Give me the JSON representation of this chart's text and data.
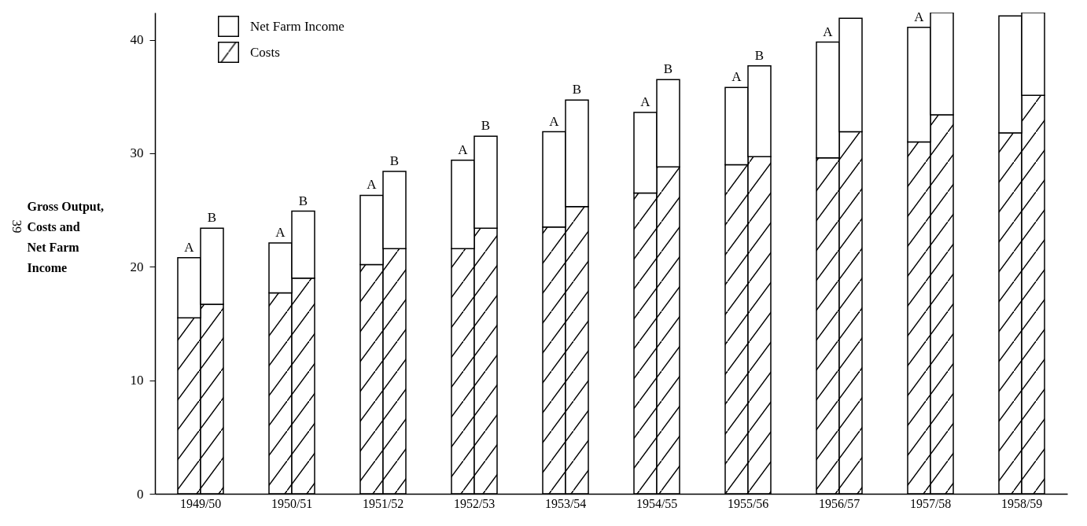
{
  "chart_data": {
    "type": "bar",
    "stacked": true,
    "ylabel": "Gross Output, Costs and Net Farm Income",
    "annotations": [
      "39"
    ],
    "categories": [
      "1949/50",
      null,
      null,
      null,
      "1950/51",
      null,
      null,
      null,
      "1951/52",
      null,
      null,
      null,
      "1952/53",
      null,
      null,
      null,
      "1953/54",
      null,
      null,
      null,
      "1954/55",
      null,
      null,
      null,
      "1955/56",
      null,
      null,
      null,
      "1956/57",
      null,
      null,
      null,
      "1957/58",
      null,
      null,
      null,
      "1958/59",
      null
    ],
    "series": [
      {
        "name": "Costs",
        "color": "#000000",
        "values": [
          15.5,
          16.7,
          null,
          null,
          17.7,
          19.0,
          null,
          null,
          20.2,
          21.6,
          null,
          null,
          21.6,
          23.4,
          null,
          null,
          23.5,
          25.3,
          null,
          null,
          26.5,
          28.8,
          null,
          null,
          29.0,
          29.7,
          null,
          null,
          29.6,
          31.9,
          null,
          null,
          31.0,
          33.4,
          null,
          null,
          31.8,
          35.1
        ]
      },
      {
        "name": "Net Farm Income",
        "color": "#ffffff",
        "values": [
          5.3,
          6.7,
          null,
          null,
          4.4,
          5.9,
          null,
          null,
          6.1,
          6.8,
          null,
          null,
          7.8,
          8.1,
          null,
          null,
          8.4,
          9.4,
          null,
          null,
          7.1,
          7.7,
          null,
          null,
          6.8,
          8.0,
          null,
          null,
          10.2,
          10.0,
          null,
          null,
          10.1,
          9.0,
          null,
          null,
          10.3,
          7.3
        ],
        "value_labels": [
          "A",
          "B",
          null,
          null,
          "A",
          "B",
          null,
          null,
          "A",
          "B",
          null,
          null,
          "A",
          "B",
          null,
          null,
          "A",
          "B",
          null,
          null,
          "A",
          "B",
          null,
          null,
          "A",
          "B",
          null,
          null,
          "A",
          null,
          null,
          null,
          "A",
          null,
          null,
          null,
          null,
          null
        ]
      }
    ],
    "ylim": [
      0,
      42.4
    ],
    "yticks": [
      0,
      10,
      20,
      30,
      40
    ],
    "legend": "top left"
  }
}
